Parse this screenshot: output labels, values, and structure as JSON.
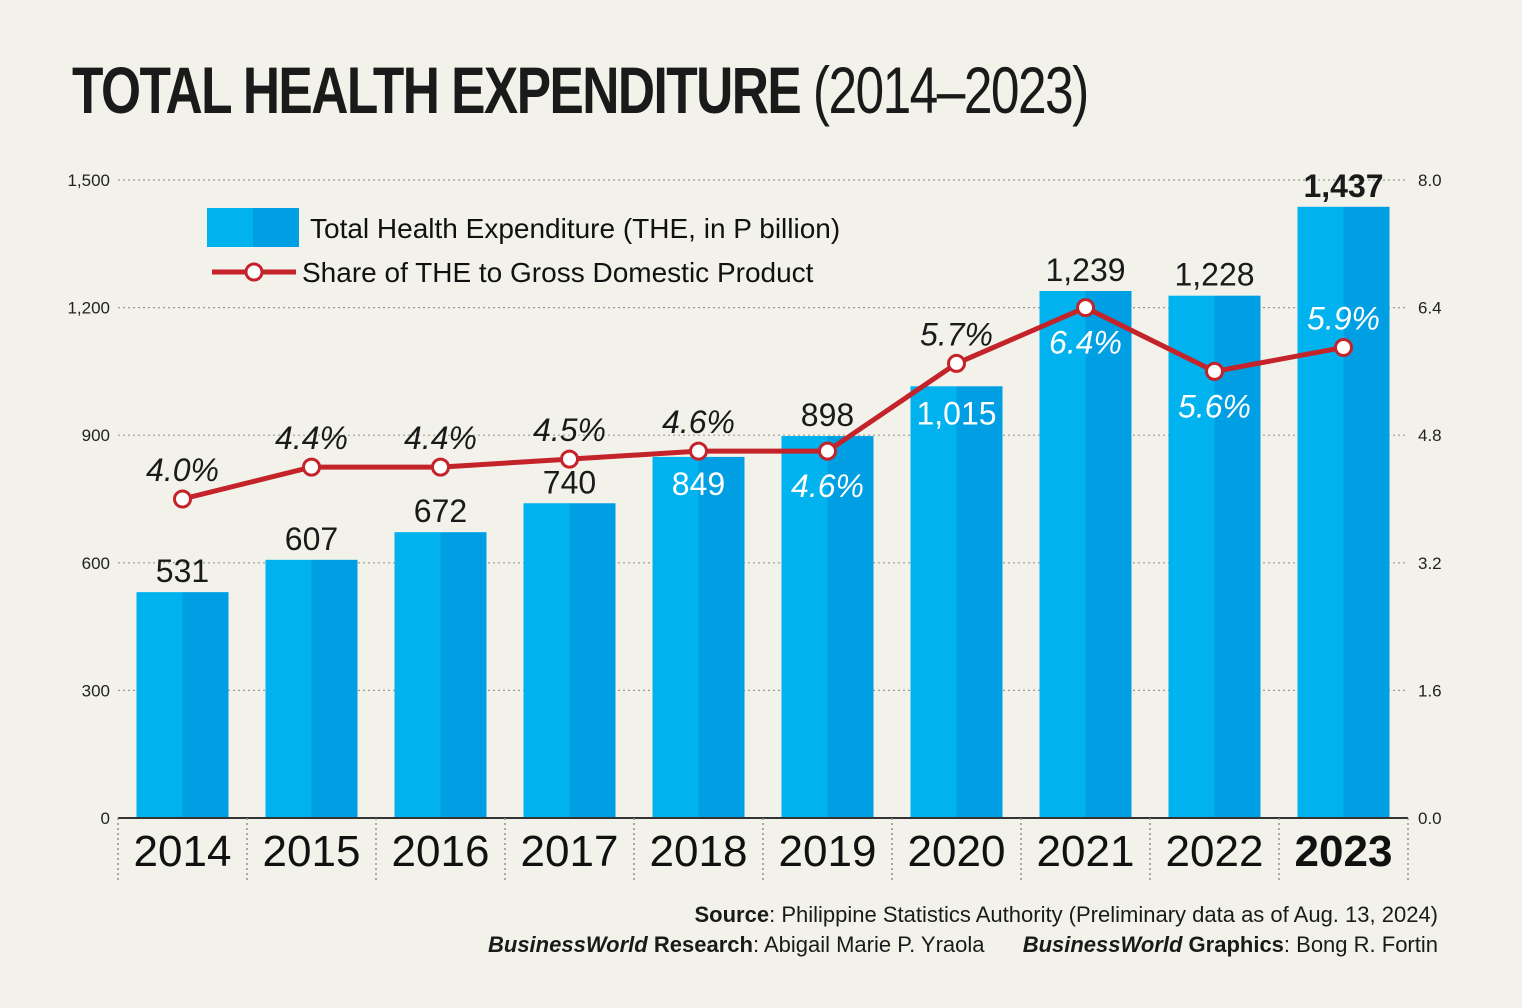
{
  "title": {
    "bold": "TOTAL HEALTH EXPENDITURE",
    "normal": "(2014–2023)"
  },
  "colors": {
    "bar_light": "#00b3ef",
    "bar_dark": "#009fe3",
    "line": "#c4232a",
    "background": "#f2f2ea"
  },
  "chart_data": {
    "type": "bar",
    "categories": [
      "2014",
      "2015",
      "2016",
      "2017",
      "2018",
      "2019",
      "2020",
      "2021",
      "2022",
      "2023"
    ],
    "series": [
      {
        "name": "Total Health Expenditure (THE, in P billion)",
        "type": "bar",
        "axis": "left",
        "values": [
          531,
          607,
          672,
          740,
          849,
          898,
          1015,
          1239,
          1228,
          1437
        ],
        "labels": [
          "531",
          "607",
          "672",
          "740",
          "849",
          "898",
          "1,015",
          "1,239",
          "1,228",
          "1,437"
        ]
      },
      {
        "name": "Share of THE to Gross Domestic Product",
        "type": "line",
        "axis": "right",
        "values": [
          4.0,
          4.4,
          4.4,
          4.5,
          4.6,
          4.6,
          5.7,
          6.4,
          5.6,
          5.9
        ],
        "labels": [
          "4.0%",
          "4.4%",
          "4.4%",
          "4.5%",
          "4.6%",
          "4.6%",
          "5.7%",
          "6.4%",
          "5.6%",
          "5.9%"
        ]
      }
    ],
    "y_left": {
      "ylim": [
        0,
        1500
      ],
      "ticks": [
        "0",
        "300",
        "600",
        "900",
        "1,200",
        "1,500"
      ]
    },
    "y_right": {
      "ylim": [
        0,
        8
      ],
      "ticks": [
        "0.0",
        "1.6",
        "3.2",
        "4.8",
        "6.4",
        "8.0"
      ]
    },
    "grid": true,
    "legend_position": "top-left",
    "highlight_category": "2023"
  },
  "footer": {
    "source_label": "Source",
    "source_text": ": Philippine Statistics Authority (Preliminary data as of Aug. 13, 2024)",
    "research_brand": "BusinessWorld",
    "research_label": " Research",
    "research_text": ": Abigail Marie P. Yraola",
    "graphics_brand": "BusinessWorld",
    "graphics_label": " Graphics",
    "graphics_text": ": Bong R. Fortin"
  }
}
